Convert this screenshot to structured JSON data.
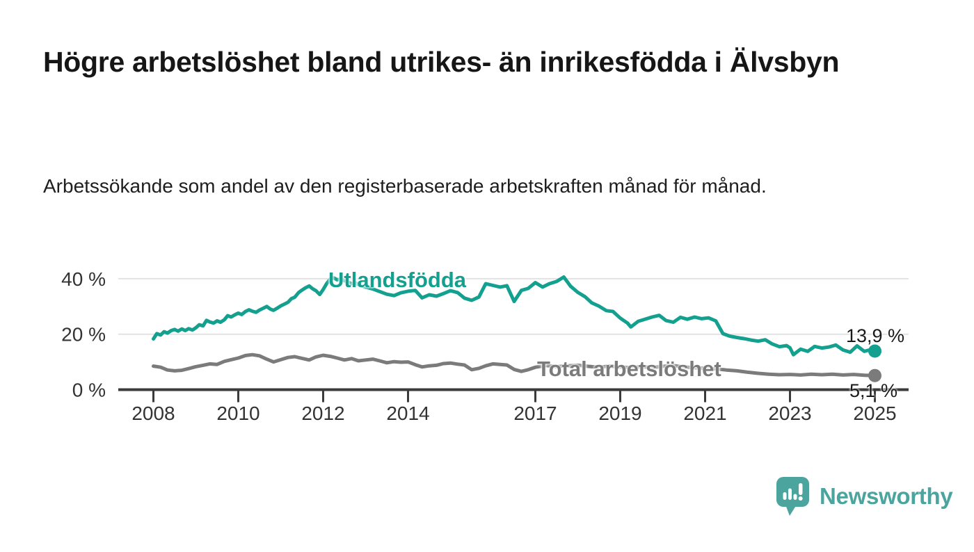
{
  "chart_data": {
    "type": "line",
    "title": "Högre arbetslöshet bland utrikes- än inrikesfödda i Älvsbyn",
    "subtitle": "Arbetssökande som andel av den registerbaserade arbetskraften månad för månad.",
    "unit": "%",
    "x_axis": {
      "ticks": [
        2008,
        2010,
        2012,
        2014,
        2017,
        2019,
        2021,
        2023,
        2025
      ],
      "range": [
        2007.2,
        2025.8
      ],
      "grid": false
    },
    "y_axis": {
      "ticks": [
        0,
        20,
        40
      ],
      "tick_labels": [
        "0 %",
        "20 %",
        "40 %"
      ],
      "range": [
        0,
        45
      ],
      "grid": true
    },
    "series": [
      {
        "name": "Utlandsfödda",
        "color": "#13A08F",
        "end_label": "13,9 %",
        "end_value": 13.9,
        "points": [
          [
            2008.0,
            18.3
          ],
          [
            2008.08,
            20.2
          ],
          [
            2008.17,
            19.7
          ],
          [
            2008.25,
            20.9
          ],
          [
            2008.33,
            20.4
          ],
          [
            2008.42,
            21.3
          ],
          [
            2008.5,
            21.7
          ],
          [
            2008.58,
            21.1
          ],
          [
            2008.67,
            21.9
          ],
          [
            2008.75,
            21.3
          ],
          [
            2008.83,
            22.0
          ],
          [
            2008.92,
            21.5
          ],
          [
            2009.0,
            22.3
          ],
          [
            2009.08,
            23.4
          ],
          [
            2009.17,
            23.0
          ],
          [
            2009.25,
            25.0
          ],
          [
            2009.33,
            24.4
          ],
          [
            2009.42,
            24.0
          ],
          [
            2009.5,
            24.8
          ],
          [
            2009.58,
            24.3
          ],
          [
            2009.67,
            25.2
          ],
          [
            2009.75,
            26.7
          ],
          [
            2009.83,
            26.2
          ],
          [
            2009.92,
            27.0
          ],
          [
            2010.0,
            27.6
          ],
          [
            2010.08,
            27.1
          ],
          [
            2010.17,
            28.2
          ],
          [
            2010.25,
            28.8
          ],
          [
            2010.33,
            28.3
          ],
          [
            2010.42,
            27.9
          ],
          [
            2010.5,
            28.7
          ],
          [
            2010.58,
            29.3
          ],
          [
            2010.67,
            30.0
          ],
          [
            2010.75,
            29.1
          ],
          [
            2010.83,
            28.6
          ],
          [
            2010.92,
            29.4
          ],
          [
            2011.0,
            30.2
          ],
          [
            2011.08,
            30.8
          ],
          [
            2011.17,
            31.5
          ],
          [
            2011.25,
            32.8
          ],
          [
            2011.33,
            33.3
          ],
          [
            2011.42,
            35.0
          ],
          [
            2011.5,
            35.9
          ],
          [
            2011.58,
            36.7
          ],
          [
            2011.67,
            37.4
          ],
          [
            2011.75,
            36.4
          ],
          [
            2011.83,
            35.7
          ],
          [
            2011.92,
            34.3
          ],
          [
            2012.0,
            36.1
          ],
          [
            2012.08,
            38.2
          ],
          [
            2012.17,
            40.0
          ],
          [
            2012.25,
            40.3
          ],
          [
            2012.33,
            39.6
          ],
          [
            2012.42,
            39.9
          ],
          [
            2012.5,
            39.3
          ],
          [
            2012.58,
            38.8
          ],
          [
            2012.67,
            38.2
          ],
          [
            2012.75,
            38.6
          ],
          [
            2012.83,
            37.9
          ],
          [
            2012.92,
            37.4
          ],
          [
            2013.0,
            37.0
          ],
          [
            2013.17,
            36.3
          ],
          [
            2013.33,
            35.4
          ],
          [
            2013.5,
            34.4
          ],
          [
            2013.67,
            33.9
          ],
          [
            2013.83,
            34.9
          ],
          [
            2014.0,
            35.5
          ],
          [
            2014.17,
            35.8
          ],
          [
            2014.33,
            33.1
          ],
          [
            2014.5,
            34.2
          ],
          [
            2014.67,
            33.7
          ],
          [
            2014.83,
            34.6
          ],
          [
            2015.0,
            35.7
          ],
          [
            2015.17,
            35.0
          ],
          [
            2015.33,
            33.0
          ],
          [
            2015.5,
            32.2
          ],
          [
            2015.67,
            33.4
          ],
          [
            2015.83,
            38.2
          ],
          [
            2016.0,
            37.6
          ],
          [
            2016.17,
            37.0
          ],
          [
            2016.33,
            37.5
          ],
          [
            2016.5,
            31.8
          ],
          [
            2016.67,
            35.8
          ],
          [
            2016.83,
            36.5
          ],
          [
            2017.0,
            38.6
          ],
          [
            2017.17,
            37.0
          ],
          [
            2017.33,
            38.2
          ],
          [
            2017.5,
            39.0
          ],
          [
            2017.67,
            40.6
          ],
          [
            2017.83,
            37.3
          ],
          [
            2018.0,
            35.1
          ],
          [
            2018.17,
            33.5
          ],
          [
            2018.33,
            31.3
          ],
          [
            2018.5,
            30.1
          ],
          [
            2018.67,
            28.5
          ],
          [
            2018.83,
            28.2
          ],
          [
            2019.0,
            25.8
          ],
          [
            2019.17,
            24.0
          ],
          [
            2019.25,
            22.6
          ],
          [
            2019.42,
            24.6
          ],
          [
            2019.58,
            25.4
          ],
          [
            2019.75,
            26.2
          ],
          [
            2019.92,
            26.8
          ],
          [
            2020.08,
            24.9
          ],
          [
            2020.25,
            24.3
          ],
          [
            2020.42,
            26.1
          ],
          [
            2020.58,
            25.4
          ],
          [
            2020.75,
            26.2
          ],
          [
            2020.92,
            25.6
          ],
          [
            2021.08,
            25.9
          ],
          [
            2021.25,
            24.8
          ],
          [
            2021.42,
            20.2
          ],
          [
            2021.58,
            19.3
          ],
          [
            2021.75,
            18.8
          ],
          [
            2021.92,
            18.4
          ],
          [
            2022.08,
            17.9
          ],
          [
            2022.25,
            17.5
          ],
          [
            2022.42,
            18.0
          ],
          [
            2022.58,
            16.5
          ],
          [
            2022.75,
            15.5
          ],
          [
            2022.92,
            15.9
          ],
          [
            2023.0,
            15.1
          ],
          [
            2023.08,
            12.6
          ],
          [
            2023.25,
            14.6
          ],
          [
            2023.42,
            13.8
          ],
          [
            2023.58,
            15.6
          ],
          [
            2023.75,
            15.0
          ],
          [
            2023.92,
            15.4
          ],
          [
            2024.08,
            16.1
          ],
          [
            2024.25,
            14.3
          ],
          [
            2024.42,
            13.5
          ],
          [
            2024.58,
            15.8
          ],
          [
            2024.75,
            13.8
          ],
          [
            2024.92,
            14.5
          ],
          [
            2025.0,
            13.9
          ]
        ]
      },
      {
        "name": "Total arbetslöshet",
        "color": "#7B7B7B",
        "end_label": "5,1 %",
        "end_value": 5.1,
        "points": [
          [
            2008.0,
            8.5
          ],
          [
            2008.17,
            8.1
          ],
          [
            2008.33,
            7.1
          ],
          [
            2008.5,
            6.8
          ],
          [
            2008.67,
            7.0
          ],
          [
            2008.83,
            7.6
          ],
          [
            2009.0,
            8.3
          ],
          [
            2009.17,
            8.8
          ],
          [
            2009.33,
            9.3
          ],
          [
            2009.5,
            9.1
          ],
          [
            2009.67,
            10.2
          ],
          [
            2009.83,
            10.8
          ],
          [
            2010.0,
            11.4
          ],
          [
            2010.17,
            12.3
          ],
          [
            2010.33,
            12.6
          ],
          [
            2010.5,
            12.2
          ],
          [
            2010.67,
            11.0
          ],
          [
            2010.83,
            10.0
          ],
          [
            2011.0,
            10.8
          ],
          [
            2011.17,
            11.6
          ],
          [
            2011.33,
            11.9
          ],
          [
            2011.5,
            11.3
          ],
          [
            2011.67,
            10.7
          ],
          [
            2011.83,
            11.8
          ],
          [
            2012.0,
            12.4
          ],
          [
            2012.17,
            12.0
          ],
          [
            2012.33,
            11.4
          ],
          [
            2012.5,
            10.7
          ],
          [
            2012.67,
            11.2
          ],
          [
            2012.83,
            10.4
          ],
          [
            2013.0,
            10.7
          ],
          [
            2013.17,
            11.0
          ],
          [
            2013.33,
            10.4
          ],
          [
            2013.5,
            9.7
          ],
          [
            2013.67,
            10.1
          ],
          [
            2013.83,
            9.9
          ],
          [
            2014.0,
            10.0
          ],
          [
            2014.17,
            9.0
          ],
          [
            2014.33,
            8.2
          ],
          [
            2014.5,
            8.6
          ],
          [
            2014.67,
            8.8
          ],
          [
            2014.83,
            9.4
          ],
          [
            2015.0,
            9.6
          ],
          [
            2015.17,
            9.2
          ],
          [
            2015.33,
            8.9
          ],
          [
            2015.5,
            7.2
          ],
          [
            2015.67,
            7.7
          ],
          [
            2015.83,
            8.6
          ],
          [
            2016.0,
            9.3
          ],
          [
            2016.17,
            9.1
          ],
          [
            2016.33,
            8.9
          ],
          [
            2016.5,
            7.3
          ],
          [
            2016.67,
            6.6
          ],
          [
            2016.83,
            7.2
          ],
          [
            2017.0,
            8.1
          ],
          [
            2017.25,
            8.7
          ],
          [
            2017.5,
            8.3
          ],
          [
            2017.75,
            8.6
          ],
          [
            2018.0,
            8.8
          ],
          [
            2018.25,
            8.4
          ],
          [
            2018.5,
            8.1
          ],
          [
            2018.75,
            8.5
          ],
          [
            2019.0,
            8.2
          ],
          [
            2019.25,
            7.9
          ],
          [
            2019.5,
            8.3
          ],
          [
            2019.75,
            8.0
          ],
          [
            2020.0,
            8.4
          ],
          [
            2020.25,
            8.7
          ],
          [
            2020.5,
            8.2
          ],
          [
            2020.75,
            7.9
          ],
          [
            2021.0,
            7.7
          ],
          [
            2021.25,
            7.5
          ],
          [
            2021.5,
            7.1
          ],
          [
            2021.75,
            6.8
          ],
          [
            2022.0,
            6.3
          ],
          [
            2022.25,
            5.9
          ],
          [
            2022.5,
            5.6
          ],
          [
            2022.75,
            5.4
          ],
          [
            2023.0,
            5.5
          ],
          [
            2023.25,
            5.3
          ],
          [
            2023.5,
            5.6
          ],
          [
            2023.75,
            5.4
          ],
          [
            2024.0,
            5.6
          ],
          [
            2024.25,
            5.3
          ],
          [
            2024.5,
            5.5
          ],
          [
            2024.75,
            5.2
          ],
          [
            2025.0,
            5.1
          ]
        ]
      }
    ],
    "legend_position": "inline-labels",
    "colors": {
      "axis": "#3B3B3B",
      "gridline": "#E2E2E2",
      "tick_text": "#333333"
    }
  },
  "branding": {
    "logo_text": "Newsworthy",
    "logo_color": "#4BA49D"
  }
}
